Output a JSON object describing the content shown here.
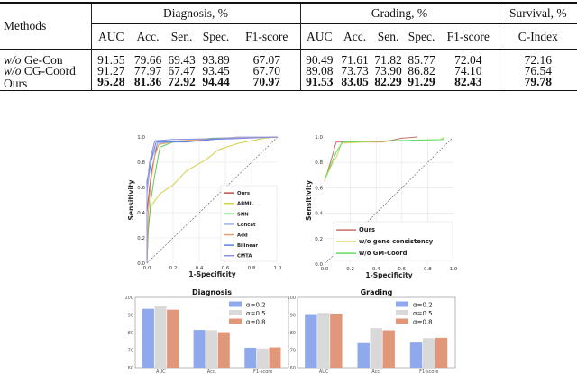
{
  "table": {
    "header_method": "Methods",
    "groups": [
      "Diagnosis, %",
      "Grading, %",
      "Survival, %"
    ],
    "columns": [
      "AUC",
      "Acc.",
      "Sen.",
      "Spec.",
      "F1-score",
      "AUC",
      "Acc.",
      "Sen.",
      "Spec.",
      "F1-score",
      "C-Index"
    ],
    "rows": [
      {
        "prefix": "w/o",
        "method": "Ge-Con",
        "values": [
          "91.55",
          "79.66",
          "69.43",
          "93.89",
          "67.07",
          "90.49",
          "71.61",
          "71.82",
          "85.77",
          "72.04",
          "72.16"
        ]
      },
      {
        "prefix": "w/o",
        "method": "CG-Coord",
        "values": [
          "91.27",
          "77.97",
          "67.47",
          "93.45",
          "67.70",
          "89.08",
          "73.73",
          "73.90",
          "86.82",
          "74.10",
          "76.54"
        ]
      },
      {
        "prefix": "",
        "method": "Ours",
        "values": [
          "95.28",
          "81.36",
          "72.92",
          "94.44",
          "70.97",
          "91.53",
          "83.05",
          "82.29",
          "91.29",
          "82.43",
          "79.78"
        ],
        "bold": true
      }
    ]
  },
  "chart_data": [
    {
      "type": "line",
      "xlabel": "1-Specificity",
      "ylabel": "Sensitivity",
      "xlim": [
        0,
        1
      ],
      "ylim": [
        0,
        1
      ],
      "ticks": [
        "0.0",
        "0.2",
        "0.4",
        "0.6",
        "0.8",
        "1.0"
      ],
      "grid": true,
      "legend": "bottom-right",
      "diagonal": true,
      "series": [
        {
          "name": "Ours",
          "color": "#b4553f",
          "points": [
            [
              0,
              0
            ],
            [
              0,
              0.4
            ],
            [
              0.02,
              0.6
            ],
            [
              0.04,
              0.75
            ],
            [
              0.06,
              0.85
            ],
            [
              0.08,
              0.95
            ],
            [
              0.2,
              0.96
            ],
            [
              0.4,
              0.97
            ],
            [
              0.6,
              0.99
            ],
            [
              1,
              1
            ]
          ]
        },
        {
          "name": "ABMIL",
          "color": "#d4d04c",
          "points": [
            [
              0,
              0
            ],
            [
              0.01,
              0.3
            ],
            [
              0.03,
              0.45
            ],
            [
              0.1,
              0.55
            ],
            [
              0.2,
              0.62
            ],
            [
              0.3,
              0.73
            ],
            [
              0.45,
              0.82
            ],
            [
              0.55,
              0.9
            ],
            [
              0.7,
              0.95
            ],
            [
              0.9,
              0.99
            ],
            [
              1,
              1
            ]
          ]
        },
        {
          "name": "SNN",
          "color": "#5cc85c",
          "points": [
            [
              0,
              0
            ],
            [
              0.01,
              0.25
            ],
            [
              0.03,
              0.5
            ],
            [
              0.06,
              0.7
            ],
            [
              0.1,
              0.92
            ],
            [
              0.2,
              0.96
            ],
            [
              0.5,
              0.99
            ],
            [
              1,
              1
            ]
          ]
        },
        {
          "name": "Concat",
          "color": "#9fb2ea",
          "points": [
            [
              0,
              0
            ],
            [
              0,
              0.55
            ],
            [
              0.03,
              0.8
            ],
            [
              0.08,
              0.95
            ],
            [
              0.3,
              0.97
            ],
            [
              0.7,
              1
            ],
            [
              1,
              1
            ]
          ]
        },
        {
          "name": "Add",
          "color": "#e8a070",
          "points": [
            [
              0,
              0
            ],
            [
              0.01,
              0.4
            ],
            [
              0.03,
              0.65
            ],
            [
              0.06,
              0.85
            ],
            [
              0.09,
              0.94
            ],
            [
              0.25,
              0.97
            ],
            [
              0.6,
              0.99
            ],
            [
              1,
              1
            ]
          ]
        },
        {
          "name": "Bilinear",
          "color": "#5a82e8",
          "points": [
            [
              0,
              0
            ],
            [
              0,
              0.65
            ],
            [
              0.04,
              0.85
            ],
            [
              0.07,
              0.96
            ],
            [
              0.3,
              0.96
            ],
            [
              0.5,
              0.98
            ],
            [
              1,
              1
            ]
          ]
        },
        {
          "name": "CMTA",
          "color": "#8b8fe0",
          "points": [
            [
              0,
              0
            ],
            [
              0,
              0.6
            ],
            [
              0.02,
              0.8
            ],
            [
              0.06,
              0.97
            ],
            [
              0.2,
              0.98
            ],
            [
              0.7,
              0.99
            ],
            [
              1,
              1
            ]
          ]
        }
      ]
    },
    {
      "type": "line",
      "xlabel": "1-Specificity",
      "ylabel": "Sensitivity",
      "xlim": [
        0,
        1
      ],
      "ylim": [
        0,
        1
      ],
      "ticks": [
        "0.0",
        "0.2",
        "0.4",
        "0.6",
        "0.8",
        "1.0"
      ],
      "grid": true,
      "legend": "bottom",
      "diagonal": true,
      "series": [
        {
          "name": "Ours",
          "color": "#c8706a",
          "points": [
            [
              0,
              0.65
            ],
            [
              0.03,
              0.75
            ],
            [
              0.06,
              0.85
            ],
            [
              0.09,
              0.96
            ],
            [
              0.45,
              0.96
            ],
            [
              0.6,
              0.99
            ],
            [
              0.72,
              1
            ]
          ]
        },
        {
          "name": "w/o gene consistency",
          "color": "#d8d060",
          "points": [
            [
              0,
              0.66
            ],
            [
              0.05,
              0.77
            ],
            [
              0.1,
              0.86
            ],
            [
              0.13,
              0.95
            ],
            [
              0.3,
              0.96
            ],
            [
              0.6,
              0.97
            ],
            [
              0.9,
              0.98
            ],
            [
              0.93,
              1
            ]
          ]
        },
        {
          "name": "w/o GM-Coord",
          "color": "#5ee05e",
          "points": [
            [
              0,
              0.67
            ],
            [
              0.04,
              0.76
            ],
            [
              0.09,
              0.88
            ],
            [
              0.14,
              0.96
            ],
            [
              0.5,
              0.97
            ],
            [
              0.92,
              0.98
            ],
            [
              0.93,
              1
            ]
          ]
        }
      ]
    },
    {
      "type": "bar",
      "title": "Diagnosis",
      "categories": [
        "AUC",
        "Acc.",
        "F1-score"
      ],
      "ylim": [
        60,
        100
      ],
      "yticks": [
        "60",
        "70",
        "80",
        "90",
        "100"
      ],
      "legend": "top-right",
      "series": [
        {
          "name": "α=0.2",
          "color": "#8fa9ec",
          "values": [
            93.5,
            81.5,
            71.3
          ]
        },
        {
          "name": "α=0.5",
          "color": "#d9d9d9",
          "values": [
            95,
            81.4,
            70.9
          ]
        },
        {
          "name": "α=0.8",
          "color": "#e0977a",
          "values": [
            93,
            80.2,
            71.5
          ]
        }
      ]
    },
    {
      "type": "bar",
      "title": "Grading",
      "categories": [
        "AUC",
        "Acc.",
        "F1-score"
      ],
      "ylim": [
        60,
        100
      ],
      "yticks": [
        "60",
        "70",
        "80",
        "90",
        "100"
      ],
      "legend": "top-right",
      "series": [
        {
          "name": "α=0.2",
          "color": "#8fa9ec",
          "values": [
            90.5,
            74,
            74.3
          ]
        },
        {
          "name": "α=0.5",
          "color": "#d9d9d9",
          "values": [
            91.2,
            82.5,
            76.8
          ]
        },
        {
          "name": "α=0.8",
          "color": "#e0977a",
          "values": [
            90.8,
            81.3,
            77
          ]
        }
      ]
    }
  ]
}
